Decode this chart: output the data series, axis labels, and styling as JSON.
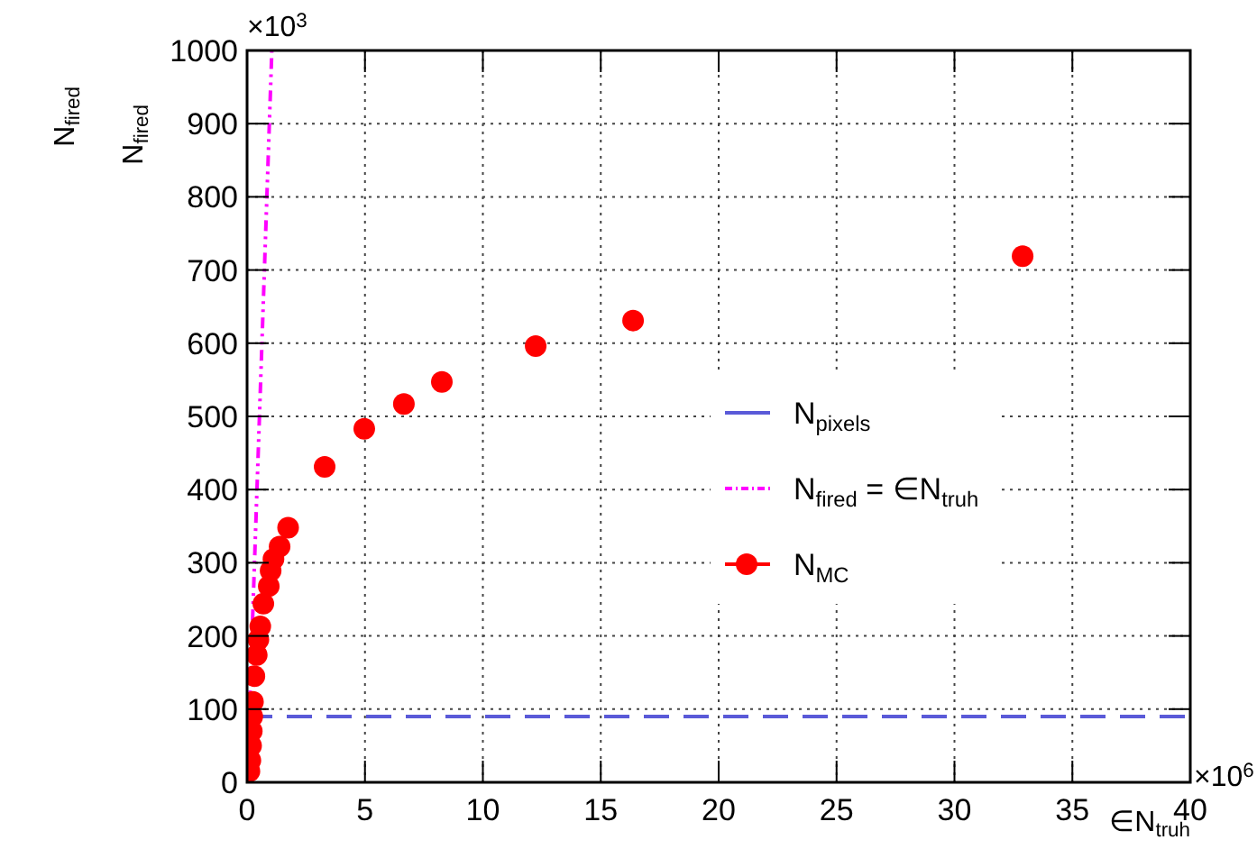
{
  "chart_data": {
    "type": "scatter",
    "ylabel": "N$_{fired}$",
    "xlabel": "∈N$_{truh}$",
    "annotations": [
      "N$_{fired}$",
      "×10$^{3}$",
      "×10$^{6}$"
    ],
    "xlim": [
      0,
      40
    ],
    "xticks": [
      0,
      5,
      10,
      15,
      20,
      25,
      30,
      35,
      40
    ],
    "ylim": [
      0,
      1000
    ],
    "yticks": [
      0,
      100,
      200,
      300,
      400,
      500,
      600,
      700,
      800,
      900,
      1000
    ],
    "grid": true,
    "legend": "right",
    "series": [
      {
        "name": "N$_{pixels}$",
        "type": "line",
        "color": "#5a5ad8",
        "line_style": "dashed",
        "x": [
          0,
          40
        ],
        "values": [
          90,
          90
        ]
      },
      {
        "name": "N$_{fired}$ = ∈N$_{truh}$",
        "type": "line",
        "color": "#ff00ff",
        "line_style": "dotted",
        "x": [
          0,
          1.05
        ],
        "values": [
          0,
          1000
        ]
      },
      {
        "name": "N$_{MC}$",
        "color": "#ff0000",
        "marker": "circle",
        "x": [
          0.1,
          0.14,
          0.17,
          0.2,
          0.22,
          0.25,
          0.31,
          0.41,
          0.48,
          0.56,
          0.69,
          0.92,
          1.0,
          1.12,
          1.38,
          1.74,
          3.29,
          4.97,
          6.65,
          8.26,
          12.24,
          16.37,
          32.89
        ],
        "values": [
          15,
          30,
          50,
          70,
          90,
          110,
          145,
          174,
          195,
          213,
          244,
          268,
          289,
          305,
          322,
          348,
          431,
          483,
          517,
          547,
          596,
          631,
          719
        ]
      }
    ]
  }
}
